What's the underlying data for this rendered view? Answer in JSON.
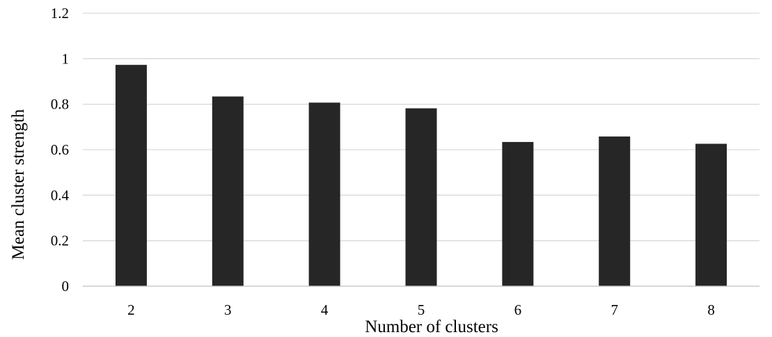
{
  "chart_data": {
    "type": "bar",
    "title": "",
    "xlabel": "Number of clusters",
    "ylabel": "Mean cluster strength",
    "categories": [
      "2",
      "3",
      "4",
      "5",
      "6",
      "7",
      "8"
    ],
    "values": [
      0.973,
      0.834,
      0.807,
      0.782,
      0.634,
      0.658,
      0.626
    ],
    "ylim": [
      0,
      1.2
    ],
    "yticks": [
      "0",
      "0.2",
      "0.4",
      "0.6",
      "0.8",
      "1",
      "1.2"
    ],
    "grid": true,
    "legend": "none",
    "bar_color": "#262626",
    "grid_color": "#d9d9d9"
  }
}
